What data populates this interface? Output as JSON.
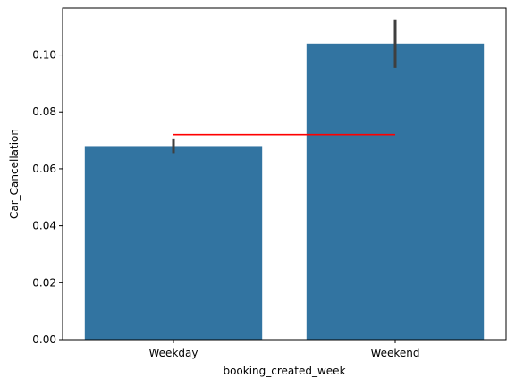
{
  "chart_data": {
    "type": "bar",
    "title": "",
    "xlabel": "booking_created_week",
    "ylabel": "Car_Cancellation",
    "categories": [
      "Weekday",
      "Weekend"
    ],
    "values": [
      0.068,
      0.104
    ],
    "error_bars": [
      {
        "low": 0.0655,
        "high": 0.0707
      },
      {
        "low": 0.0955,
        "high": 0.1125
      }
    ],
    "reference_line": {
      "y": 0.072,
      "color": "#ff0000"
    },
    "ylim": [
      0,
      0.1165
    ],
    "yticks": [
      0.0,
      0.02,
      0.04,
      0.06,
      0.08,
      0.1
    ],
    "ytick_labels": [
      "0.00",
      "0.02",
      "0.04",
      "0.06",
      "0.08",
      "0.10"
    ],
    "bar_color": "#3274a1",
    "errorbar_color": "#3f3f3f",
    "grid": false,
    "legend": "none"
  }
}
